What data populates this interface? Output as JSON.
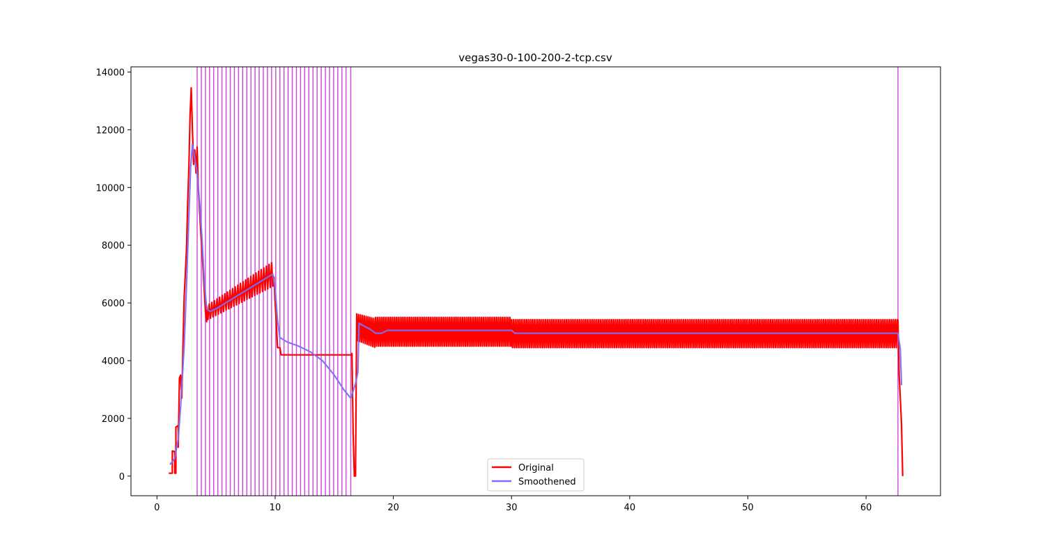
{
  "chart_data": {
    "type": "line",
    "title": "vegas30-0-100-200-2-tcp.csv",
    "xlabel": "",
    "ylabel": "",
    "xlim": [
      -2.2,
      66.3
    ],
    "ylim": [
      -680,
      14180
    ],
    "x_ticks": [
      0,
      10,
      20,
      30,
      40,
      50,
      60
    ],
    "y_ticks": [
      0,
      2000,
      4000,
      6000,
      8000,
      10000,
      12000,
      14000
    ],
    "grid": false,
    "legend_position": "lower center",
    "series": [
      {
        "name": "Original",
        "color": "#ff0000",
        "segments": [
          {
            "points": [
              [
                1.0,
                100
              ],
              [
                1.3,
                100
              ],
              [
                1.3,
                870
              ],
              [
                1.5,
                850
              ],
              [
                1.5,
                100
              ],
              [
                1.6,
                100
              ],
              [
                1.6,
                1700
              ],
              [
                1.8,
                1750
              ],
              [
                1.8,
                1000
              ],
              [
                1.9,
                3400
              ],
              [
                2.0,
                3500
              ],
              [
                2.1,
                2700
              ],
              [
                2.2,
                4500
              ],
              [
                2.3,
                6200
              ],
              [
                2.4,
                7000
              ],
              [
                2.5,
                7900
              ],
              [
                2.6,
                9500
              ],
              [
                2.7,
                10700
              ],
              [
                2.8,
                12500
              ],
              [
                2.9,
                13450
              ],
              [
                3.0,
                12000
              ],
              [
                3.1,
                10800
              ],
              [
                3.2,
                11300
              ],
              [
                3.3,
                10500
              ],
              [
                3.4,
                11400
              ],
              [
                3.5,
                10000
              ],
              [
                3.7,
                8500
              ],
              [
                3.9,
                7200
              ],
              [
                4.1,
                5700
              ],
              [
                4.2,
                5350
              ]
            ]
          },
          {
            "x_start": 4.2,
            "x_end": 9.9,
            "upper_start": 5900,
            "upper_end": 7450,
            "lower_start": 5400,
            "lower_end": 6600,
            "period": 0.22
          },
          {
            "points": [
              [
                9.9,
                6900
              ],
              [
                10.0,
                6000
              ],
              [
                10.1,
                5300
              ],
              [
                10.2,
                4450
              ],
              [
                10.4,
                4450
              ],
              [
                10.5,
                4200
              ],
              [
                16.5,
                4200
              ],
              [
                16.5,
                4250
              ],
              [
                16.6,
                1500
              ],
              [
                16.7,
                0
              ],
              [
                16.8,
                0
              ],
              [
                16.9,
                5600
              ]
            ]
          },
          {
            "x_start": 16.9,
            "x_end": 18.5,
            "upper_start": 5620,
            "upper_end": 5450,
            "lower_start": 4700,
            "lower_end": 4450,
            "period": 0.16
          },
          {
            "x_start": 18.5,
            "x_end": 30.0,
            "upper_start": 5500,
            "upper_end": 5500,
            "lower_start": 4500,
            "lower_end": 4500,
            "period": 0.16
          },
          {
            "x_start": 30.0,
            "x_end": 62.7,
            "upper_start": 5420,
            "upper_end": 5420,
            "lower_start": 4450,
            "lower_end": 4450,
            "period": 0.16
          },
          {
            "points": [
              [
                62.7,
                5400
              ],
              [
                62.8,
                3500
              ],
              [
                62.9,
                2700
              ],
              [
                63.0,
                1800
              ],
              [
                63.05,
                900
              ],
              [
                63.1,
                0
              ]
            ]
          }
        ]
      },
      {
        "name": "Smoothened",
        "color": "#7b6ff5",
        "points": [
          [
            1.1,
            400
          ],
          [
            1.5,
            600
          ],
          [
            1.8,
            1300
          ],
          [
            2.0,
            2400
          ],
          [
            2.3,
            4500
          ],
          [
            2.5,
            6600
          ],
          [
            2.7,
            9000
          ],
          [
            2.85,
            10700
          ],
          [
            3.0,
            11500
          ],
          [
            3.2,
            11000
          ],
          [
            3.4,
            10500
          ],
          [
            3.6,
            9500
          ],
          [
            3.8,
            8300
          ],
          [
            4.0,
            6800
          ],
          [
            4.2,
            5800
          ],
          [
            4.5,
            5700
          ],
          [
            5,
            5800
          ],
          [
            6,
            6050
          ],
          [
            7,
            6300
          ],
          [
            8,
            6550
          ],
          [
            9,
            6800
          ],
          [
            9.8,
            7000
          ],
          [
            10.0,
            6500
          ],
          [
            10.2,
            5400
          ],
          [
            10.4,
            4800
          ],
          [
            11,
            4650
          ],
          [
            12,
            4500
          ],
          [
            13,
            4300
          ],
          [
            14,
            4000
          ],
          [
            15,
            3500
          ],
          [
            15.8,
            3000
          ],
          [
            16.4,
            2700
          ],
          [
            16.8,
            3200
          ],
          [
            17.0,
            3600
          ],
          [
            17.1,
            5300
          ],
          [
            17.5,
            5200
          ],
          [
            18,
            5100
          ],
          [
            18.5,
            4950
          ],
          [
            19,
            4950
          ],
          [
            19.5,
            5050
          ],
          [
            25,
            5050
          ],
          [
            30,
            5050
          ],
          [
            30.3,
            4950
          ],
          [
            62.7,
            4950
          ],
          [
            62.9,
            4400
          ],
          [
            63.0,
            3150
          ]
        ]
      }
    ],
    "vertical_lines": {
      "color": "#cc44dd",
      "x_values": [
        3.4,
        3.75,
        4.1,
        4.45,
        4.8,
        5.15,
        5.5,
        5.85,
        6.2,
        6.55,
        6.9,
        7.25,
        7.6,
        7.95,
        8.3,
        8.65,
        9.0,
        9.35,
        9.7,
        10.05,
        10.4,
        10.75,
        11.1,
        11.45,
        11.8,
        12.15,
        12.5,
        12.85,
        13.2,
        13.55,
        13.9,
        14.25,
        14.6,
        14.95,
        15.3,
        15.65,
        16.0,
        16.4,
        62.7
      ]
    }
  }
}
